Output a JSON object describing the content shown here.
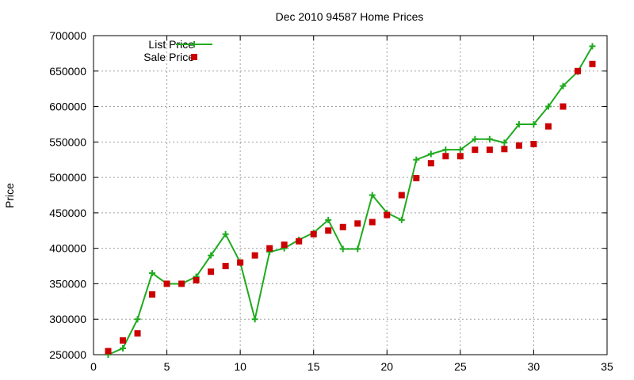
{
  "chart_data": {
    "type": "line",
    "title": "Dec 2010 94587 Home Prices",
    "xlabel": "",
    "ylabel": "Price",
    "xlim": [
      0,
      35
    ],
    "ylim": [
      250000,
      700000
    ],
    "x_ticks": [
      "0",
      "5",
      "10",
      "15",
      "20",
      "25",
      "30",
      "35"
    ],
    "y_ticks": [
      "250000",
      "300000",
      "350000",
      "400000",
      "450000",
      "500000",
      "550000",
      "600000",
      "650000",
      "700000"
    ],
    "grid": true,
    "legend_position": "top-left",
    "series": [
      {
        "name": "List Price",
        "style": "line-with-plus-markers",
        "color": "#1faa1f",
        "x": [
          1,
          2,
          3,
          4,
          5,
          6,
          7,
          8,
          9,
          10,
          11,
          12,
          13,
          14,
          15,
          16,
          17,
          18,
          19,
          20,
          21,
          22,
          23,
          24,
          25,
          26,
          27,
          28,
          29,
          30,
          31,
          32,
          33,
          34
        ],
        "y": [
          250000,
          259000,
          300000,
          365000,
          350000,
          350000,
          360000,
          390000,
          420000,
          380000,
          300000,
          395000,
          400000,
          412000,
          422000,
          440000,
          399000,
          399000,
          475000,
          450000,
          440000,
          525000,
          533000,
          539000,
          539000,
          554000,
          554000,
          549000,
          575000,
          575000,
          600000,
          629000,
          649000,
          685000
        ]
      },
      {
        "name": "Sale Price",
        "style": "square-markers",
        "color": "#cc0000",
        "x": [
          1,
          2,
          3,
          4,
          5,
          6,
          7,
          8,
          9,
          10,
          11,
          12,
          13,
          14,
          15,
          16,
          17,
          18,
          19,
          20,
          21,
          22,
          23,
          24,
          25,
          26,
          27,
          28,
          29,
          30,
          31,
          32,
          33,
          34
        ],
        "y": [
          255000,
          270000,
          280000,
          335000,
          350000,
          350000,
          355000,
          367000,
          375000,
          380000,
          390000,
          400000,
          405000,
          410000,
          420000,
          425000,
          430000,
          435000,
          437000,
          447000,
          475000,
          499000,
          520000,
          530000,
          530000,
          539000,
          539000,
          540000,
          545000,
          547000,
          572000,
          600000,
          650000,
          660000
        ]
      }
    ]
  }
}
